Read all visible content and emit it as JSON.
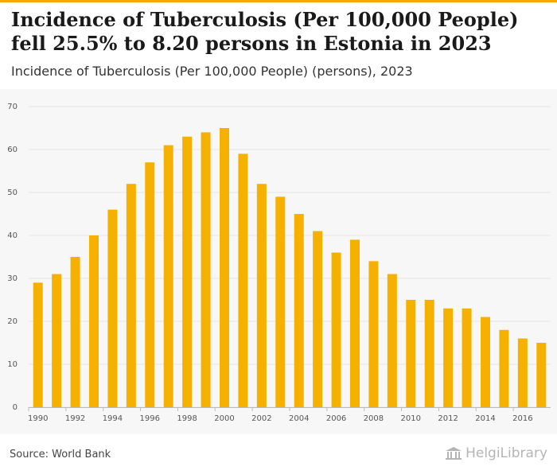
{
  "header": {
    "title": "Incidence of Tuberculosis (Per 100,000 People) fell 25.5% to 8.20 persons in Estonia in 2023",
    "subtitle": "Incidence of Tuberculosis (Per 100,000 People) (persons), 2023"
  },
  "footer": {
    "source": "Source: World Bank",
    "brand": "HelgiLibrary"
  },
  "colors": {
    "bar": "#f5b000",
    "accent": "#f5a800",
    "grid": "#e4e4e4"
  },
  "chart_data": {
    "type": "bar",
    "title": "Incidence of Tuberculosis (Per 100,000 People) (persons), 2023",
    "xlabel": "",
    "ylabel": "",
    "ylim": [
      0,
      70
    ],
    "yticks": [
      0,
      10,
      20,
      30,
      40,
      50,
      60,
      70
    ],
    "categories": [
      "1990",
      "1991",
      "1992",
      "1993",
      "1994",
      "1995",
      "1996",
      "1997",
      "1998",
      "1999",
      "2000",
      "2001",
      "2002",
      "2003",
      "2004",
      "2005",
      "2006",
      "2007",
      "2008",
      "2009",
      "2010",
      "2011",
      "2012",
      "2013",
      "2014",
      "2015",
      "2016",
      "2017"
    ],
    "x_tick_labels": [
      "1990",
      "1992",
      "1994",
      "1996",
      "1998",
      "2000",
      "2002",
      "2004",
      "2006",
      "2008",
      "2010",
      "2012",
      "2014",
      "2016"
    ],
    "values": [
      29,
      31,
      35,
      40,
      46,
      52,
      57,
      61,
      63,
      64,
      65,
      59,
      52,
      49,
      45,
      41,
      36,
      39,
      34,
      31,
      25,
      25,
      23,
      23,
      21,
      18,
      16,
      15
    ],
    "grid": true
  }
}
